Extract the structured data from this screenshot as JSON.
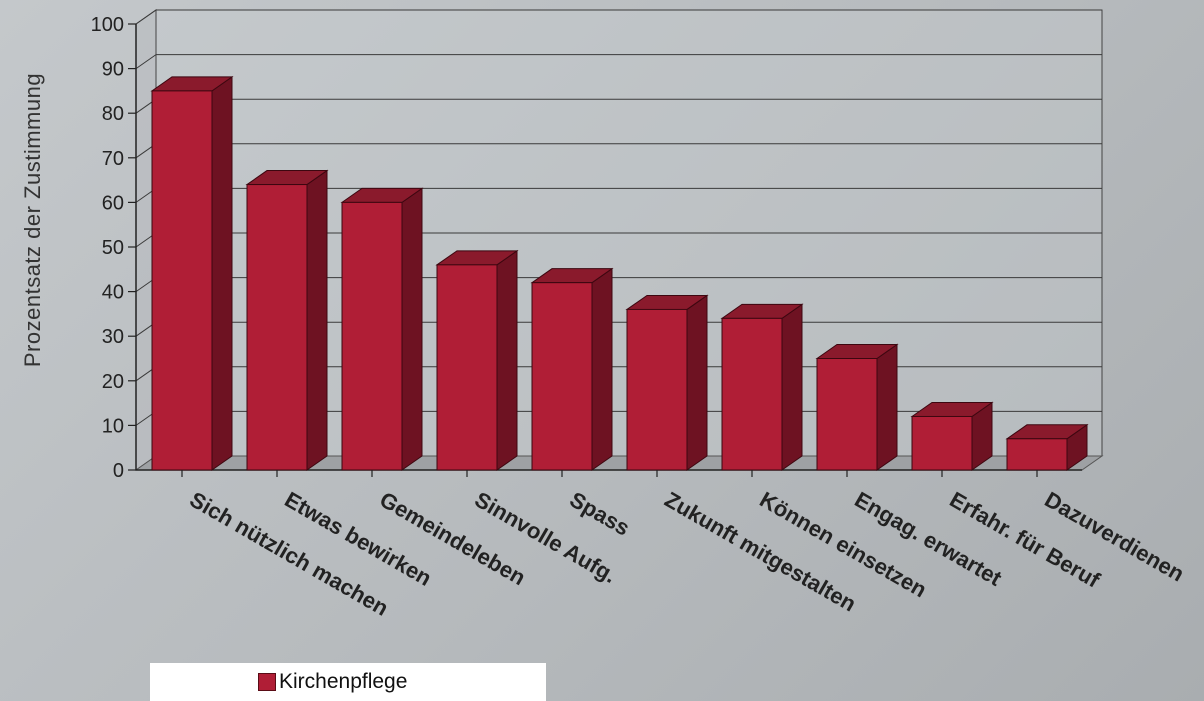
{
  "chart_data": {
    "type": "bar",
    "categories": [
      "Sich nützlich machen",
      "Etwas bewirken",
      "Gemeindeleben",
      "Sinnvolle Aufg.",
      "Spass",
      "Zukunft mitgestalten",
      "Können einsetzen",
      "Engag. erwartet",
      "Erfahr. für Beruf",
      "Dazuverdienen"
    ],
    "series": [
      {
        "name": "Kirchenpflege",
        "values": [
          85,
          64,
          60,
          46,
          42,
          36,
          34,
          25,
          12,
          7
        ]
      }
    ],
    "ylabel": "Prozentsatz der Zustimmung",
    "xlabel": "",
    "ylim": [
      0,
      100
    ],
    "yticks": [
      0,
      10,
      20,
      30,
      40,
      50,
      60,
      70,
      80,
      90,
      100
    ],
    "grid": true,
    "legend_position": "bottom-left",
    "colors": {
      "bar_front": "#b01e36",
      "bar_side": "#6e1222",
      "bar_top": "#8a1a2c",
      "floor": "#9ea1a4"
    }
  }
}
